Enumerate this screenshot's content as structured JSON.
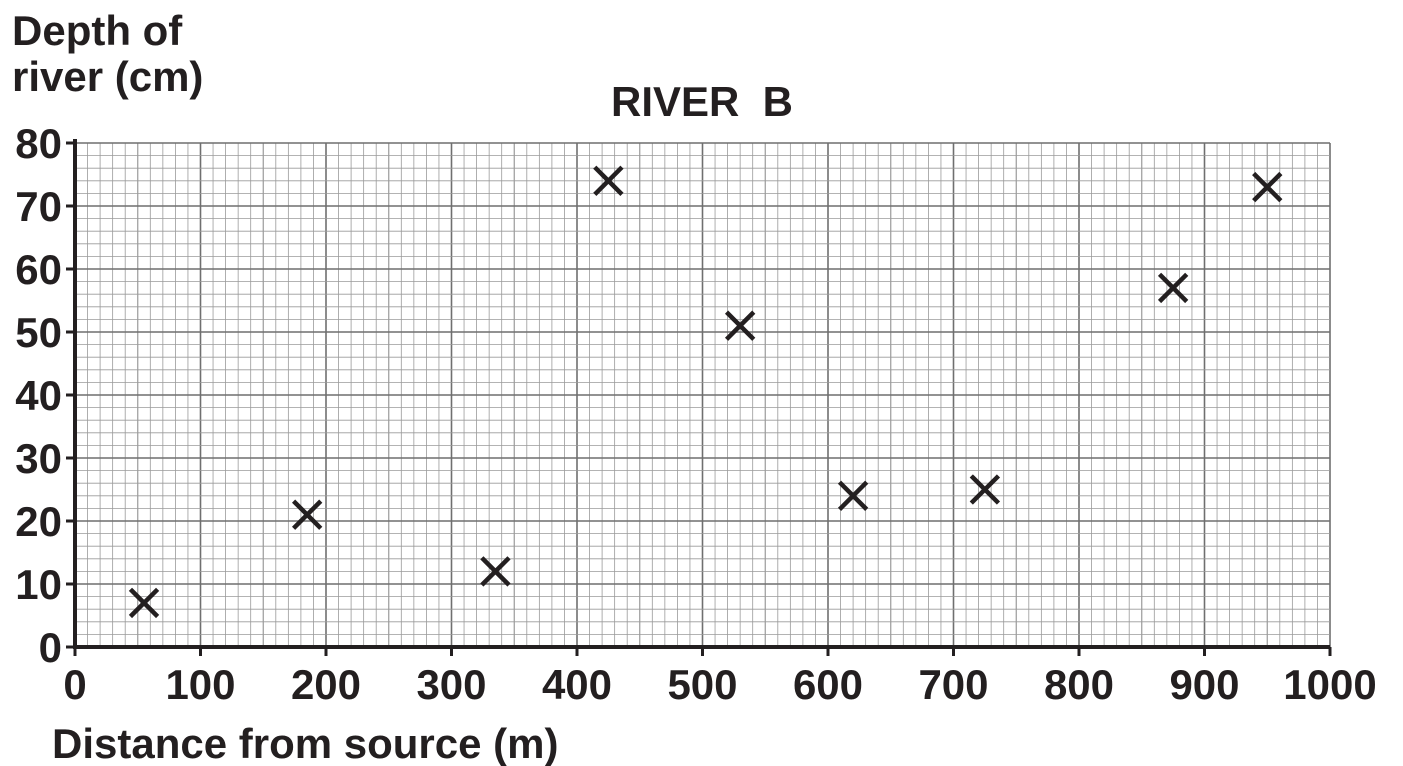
{
  "chart_data": {
    "type": "scatter",
    "title": "RIVER  B",
    "xlabel": "Distance from source (m)",
    "ylabel_line1": "Depth of",
    "ylabel_line2": "river (cm)",
    "xlim": [
      0,
      1000
    ],
    "ylim": [
      0,
      80
    ],
    "x_ticks": [
      0,
      100,
      200,
      300,
      400,
      500,
      600,
      700,
      800,
      900,
      1000
    ],
    "y_ticks": [
      0,
      10,
      20,
      30,
      40,
      50,
      60,
      70,
      80
    ],
    "grid": true,
    "marker": "x",
    "series": [
      {
        "points": [
          {
            "x": 55,
            "y": 7
          },
          {
            "x": 185,
            "y": 21
          },
          {
            "x": 335,
            "y": 12
          },
          {
            "x": 425,
            "y": 74
          },
          {
            "x": 530,
            "y": 51
          },
          {
            "x": 620,
            "y": 24
          },
          {
            "x": 725,
            "y": 25
          },
          {
            "x": 875,
            "y": 57
          },
          {
            "x": 950,
            "y": 73
          }
        ]
      }
    ],
    "colors": {
      "ink": "#231f20",
      "grid_minor": "#9a9a9a",
      "grid_major": "#6f6f6f"
    }
  }
}
